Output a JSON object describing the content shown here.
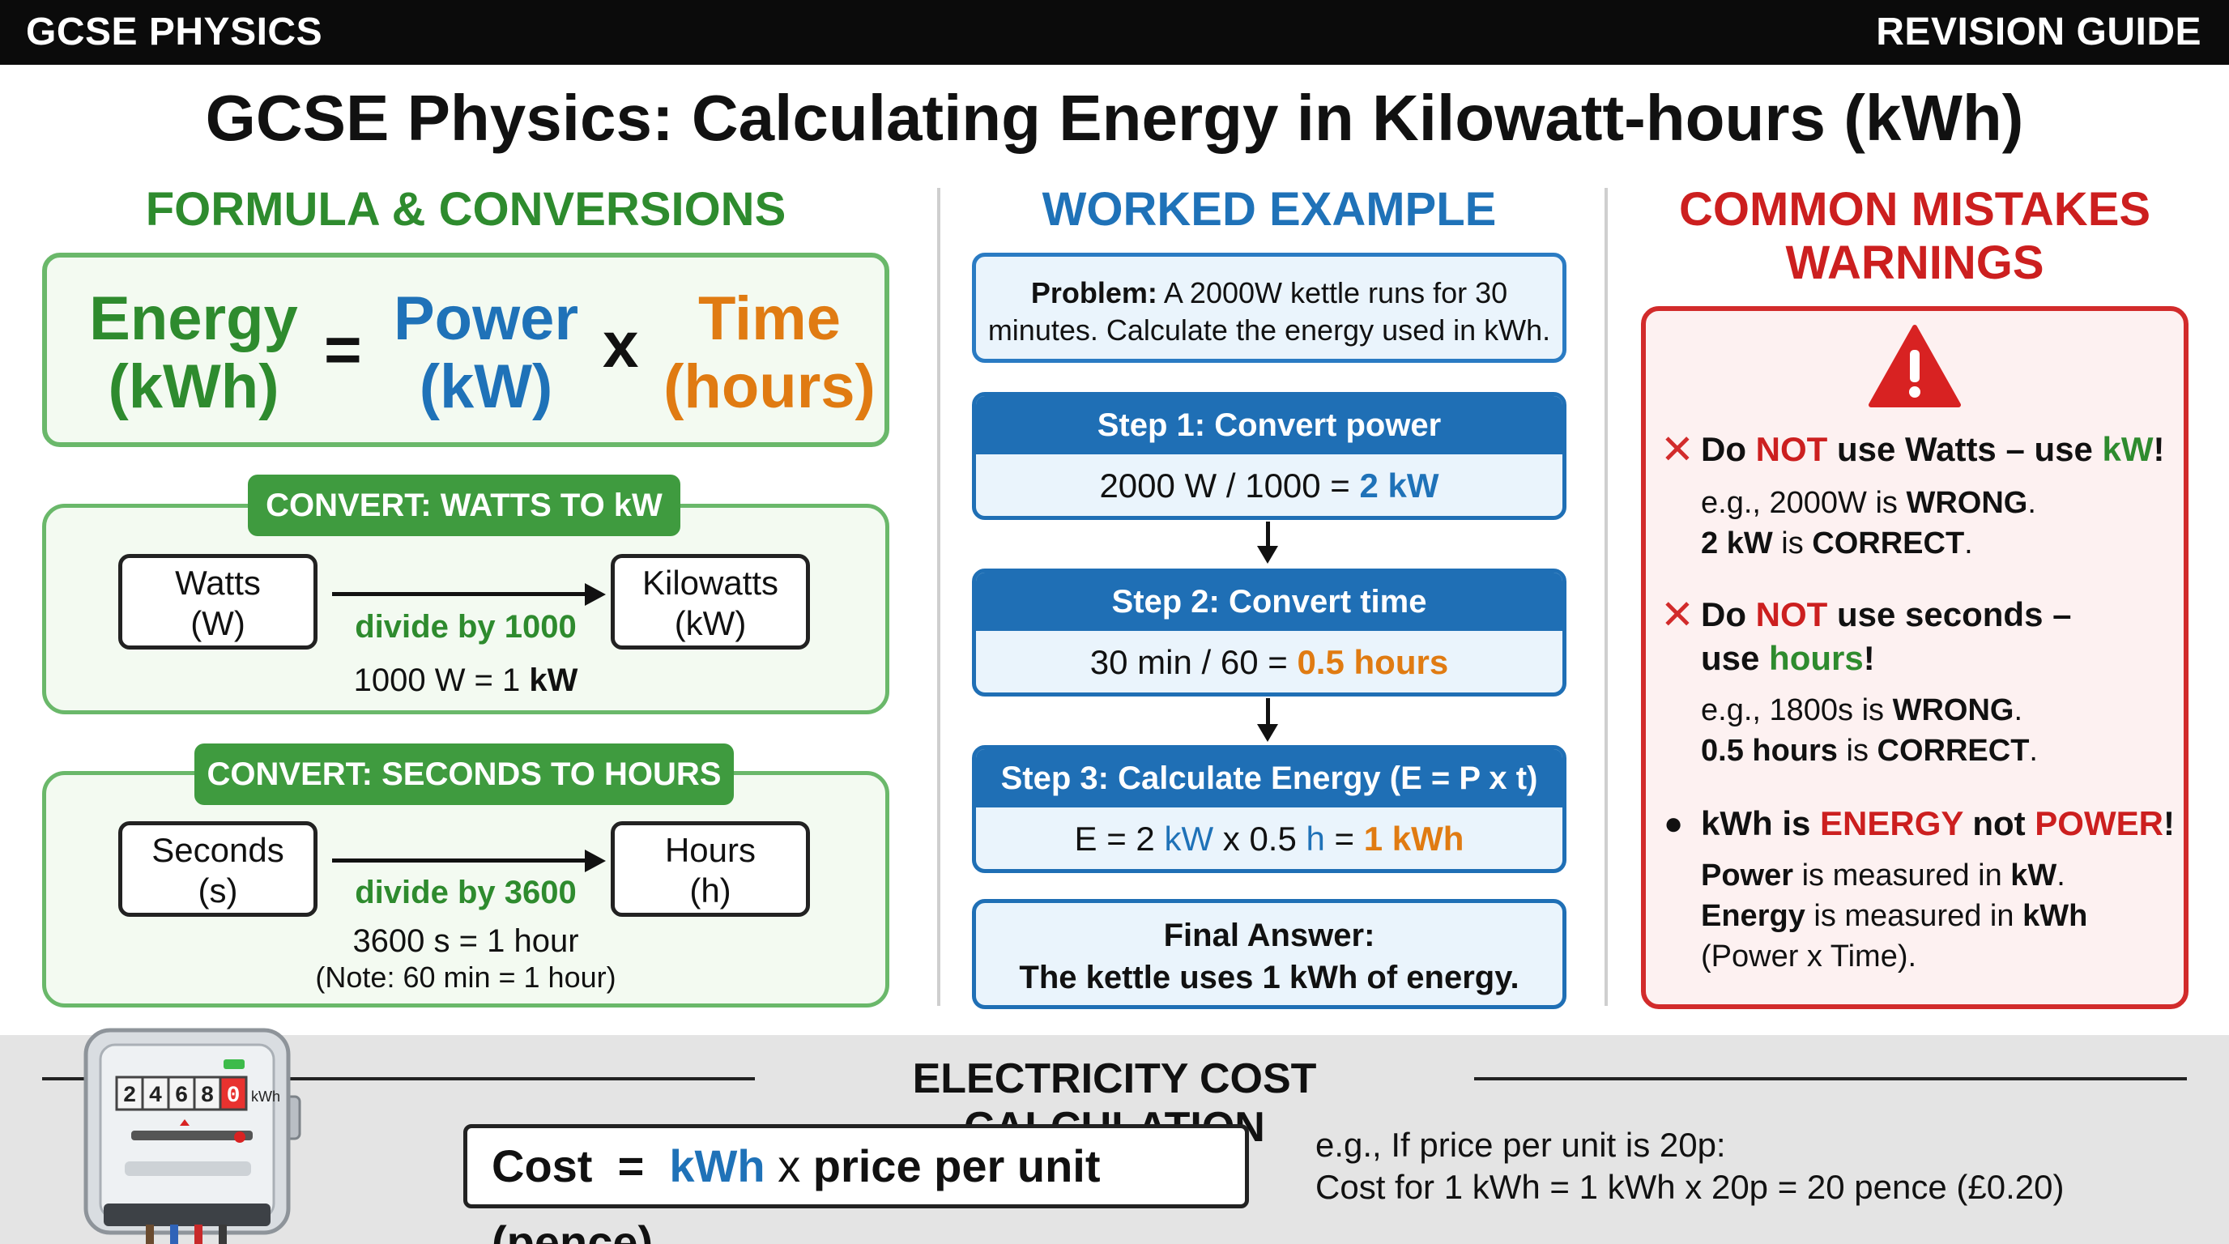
{
  "topbar": {
    "left": "GCSE PHYSICS",
    "right": "REVISION GUIDE"
  },
  "title": "GCSE Physics: Calculating Energy in Kilowatt-hours (kWh)",
  "formula_section": {
    "heading": "FORMULA & CONVERSIONS",
    "energy": "Energy",
    "energy_unit": "(kWh)",
    "equals": "=",
    "power": "Power",
    "power_unit": "(kW)",
    "times": "x",
    "time": "Time",
    "time_unit": "(hours)"
  },
  "convert_watts": {
    "tag": "CONVERT: WATTS TO kW",
    "from_line1": "Watts",
    "from_line2": "(W)",
    "to_line1": "Kilowatts",
    "to_line2": "(kW)",
    "operation": "divide by 1000",
    "note_prefix": "1000 W = 1 ",
    "note_bold": "kW"
  },
  "convert_seconds": {
    "tag": "CONVERT: SECONDS TO HOURS",
    "from_line1": "Seconds",
    "from_line2": "(s)",
    "to_line1": "Hours",
    "to_line2": "(h)",
    "operation": "divide by 3600",
    "note": "3600 s = 1 hour",
    "note2": "(Note: 60 min = 1 hour)"
  },
  "worked": {
    "heading": "WORKED EXAMPLE",
    "problem_label": "Problem:",
    "problem_text": " A 2000W kettle runs for 30",
    "problem_text2": "minutes. Calculate the energy used in kWh.",
    "step1_head": "Step 1: Convert power",
    "step1_a": "2000 W / 1000 = ",
    "step1_b": "2 kW",
    "step2_head": "Step 2: Convert time",
    "step2_a": "30 min / 60 = ",
    "step2_b": "0.5 hours",
    "step3_head": "Step 3: Calculate Energy (E = P x t)",
    "step3_a": "E = 2 ",
    "step3_b": "kW",
    "step3_c": " x 0.5 ",
    "step3_d": "h",
    "step3_e": " = ",
    "step3_f": "1 kWh",
    "final_line1": "Final Answer:",
    "final_line2": "The kettle uses 1 kWh of energy."
  },
  "mistakes": {
    "heading_line1": "COMMON MISTAKES",
    "heading_line2": "WARNINGS",
    "m1_a": "Do ",
    "m1_b": "NOT",
    "m1_c": " use Watts – use ",
    "m1_d": "kW",
    "m1_e": "!",
    "m1_eg1_a": "e.g., 2000W is ",
    "m1_eg1_b": "WRONG",
    "m1_eg1_c": ".",
    "m1_eg2_a": "2 kW",
    "m1_eg2_b": " is ",
    "m1_eg2_c": "CORRECT",
    "m1_eg2_d": ".",
    "m2_a": "Do ",
    "m2_b": "NOT",
    "m2_c": " use seconds –",
    "m2_line2_a": "use ",
    "m2_line2_b": "hours",
    "m2_line2_c": "!",
    "m2_eg1_a": "e.g., 1800s is ",
    "m2_eg1_b": "WRONG",
    "m2_eg1_c": ".",
    "m2_eg2_a": "0.5 hours",
    "m2_eg2_b": " is ",
    "m2_eg2_c": "CORRECT",
    "m2_eg2_d": ".",
    "m3_a": "kWh is ",
    "m3_b": "ENERGY",
    "m3_c": " not ",
    "m3_d": "POWER",
    "m3_e": "!",
    "m3_l1_a": "Power",
    "m3_l1_b": " is measured in ",
    "m3_l1_c": "kW",
    "m3_l1_d": ".",
    "m3_l2_a": "Energy",
    "m3_l2_b": " is measured in ",
    "m3_l2_c": "kWh",
    "m3_l3": "(Power x Time)."
  },
  "cost": {
    "heading": "ELECTRICITY COST CALCULATION",
    "cost": "Cost",
    "eq": "=",
    "kwh": "kWh",
    "x": "x",
    "price": "price per unit (pence)",
    "example_line1": "e.g., If price per unit is 20p:",
    "example_line2": "Cost for 1 kWh = 1 kWh x 20p = 20 pence (£0.20)"
  },
  "meter": {
    "digits": [
      "2",
      "4",
      "6",
      "8",
      "0"
    ],
    "unit": "kWh"
  },
  "colors": {
    "green": "#2e8b2e",
    "blue": "#1f72b8",
    "orange": "#e07b12",
    "red": "#cc1f1f"
  },
  "icons": [
    "warning-triangle-icon",
    "cross-icon",
    "electricity-meter-icon",
    "arrow-right-icon",
    "arrow-down-icon"
  ]
}
